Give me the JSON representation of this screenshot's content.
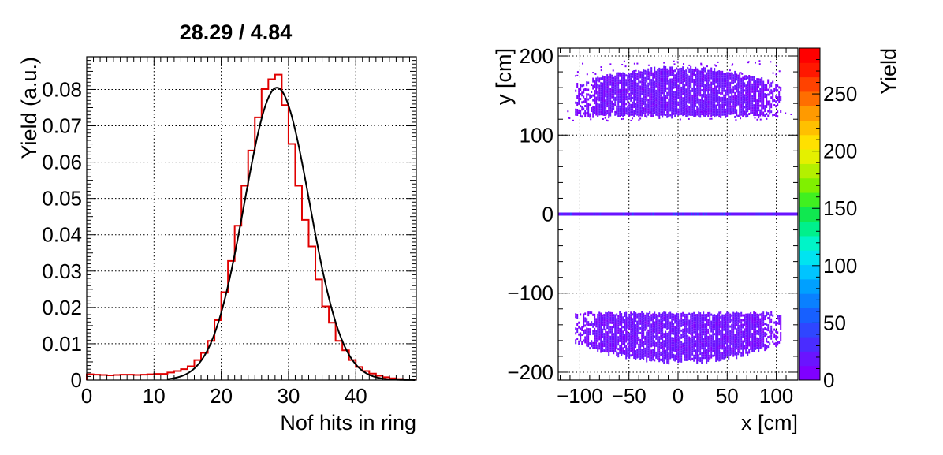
{
  "chart_data": [
    {
      "type": "histogram",
      "title": "28.29 / 4.84",
      "xlabel": "Nof hits in ring",
      "ylabel": "Yield (a.u.)",
      "xlim": [
        0,
        49
      ],
      "ylim": [
        0,
        0.089
      ],
      "grid": true,
      "x_ticks": [
        0,
        10,
        20,
        30,
        40
      ],
      "y_ticks": [
        0,
        0.01,
        0.02,
        0.03,
        0.04,
        0.05,
        0.06,
        0.07,
        0.08
      ],
      "y_tick_labels": [
        "0",
        "0.01",
        "0.02",
        "0.03",
        "0.04",
        "0.05",
        "0.06",
        "0.07",
        "0.08"
      ],
      "series": [
        {
          "kind": "histogram",
          "color": "#e00000",
          "bin_width": 1,
          "x_start": 0,
          "values": [
            0.0016,
            0.0015,
            0.0014,
            0.0013,
            0.0014,
            0.0015,
            0.0015,
            0.0014,
            0.0015,
            0.0016,
            0.0017,
            0.0017,
            0.0021,
            0.0025,
            0.003,
            0.0038,
            0.0055,
            0.0075,
            0.0108,
            0.0165,
            0.0242,
            0.0328,
            0.0425,
            0.0535,
            0.0632,
            0.0723,
            0.0801,
            0.0828,
            0.0841,
            0.0757,
            0.065,
            0.0535,
            0.0441,
            0.0368,
            0.0277,
            0.0203,
            0.0158,
            0.0108,
            0.0082,
            0.0055,
            0.0036,
            0.0025,
            0.0018,
            0.0012,
            0.0008,
            0.0005,
            0.0003,
            0.0002,
            0.0001
          ]
        },
        {
          "kind": "fit",
          "color": "#000000",
          "model": "gaussian",
          "amplitude": 0.0805,
          "mean": 28.29,
          "sigma": 4.84
        }
      ]
    },
    {
      "type": "heatmap",
      "xlabel": "x [cm]",
      "ylabel": "y [cm]",
      "zlabel": "Yield",
      "xlim": [
        -122,
        122
      ],
      "ylim": [
        -210,
        210
      ],
      "zlim": [
        0,
        290
      ],
      "grid": true,
      "x_ticks": [
        -100,
        -50,
        0,
        50,
        100
      ],
      "x_tick_labels": [
        "−100",
        "−50",
        "0",
        "50",
        "100"
      ],
      "y_ticks": [
        -200,
        -100,
        0,
        100,
        200
      ],
      "y_tick_labels": [
        "−200",
        "−100",
        "0",
        "100",
        "200"
      ],
      "z_ticks": [
        0,
        50,
        100,
        150,
        200,
        250
      ],
      "z_tick_labels": [
        "0",
        "50",
        "100",
        "150",
        "200",
        "250"
      ],
      "regions": [
        {
          "name": "upper-band",
          "x": [
            -105,
            105
          ],
          "y_inner": 125,
          "y_outer": 185,
          "level": 8
        },
        {
          "name": "lower-band",
          "x": [
            -105,
            105
          ],
          "y_inner": -125,
          "y_outer": -185,
          "level": 8
        },
        {
          "name": "center-line",
          "x": [
            -122,
            122
          ],
          "y": 0,
          "level": 25
        }
      ],
      "palette": [
        "#7f00ff",
        "#6a14ff",
        "#4a2cff",
        "#2f46ff",
        "#1760ff",
        "#0a80ff",
        "#00a0ff",
        "#00c4ff",
        "#00e4f0",
        "#00f4c8",
        "#00f08c",
        "#10e850",
        "#40f020",
        "#80f000",
        "#b4f000",
        "#e4f000",
        "#ffe000",
        "#ffc000",
        "#ff9a00",
        "#ff6e00",
        "#ff4200",
        "#ff1800",
        "#ff0000"
      ]
    }
  ]
}
